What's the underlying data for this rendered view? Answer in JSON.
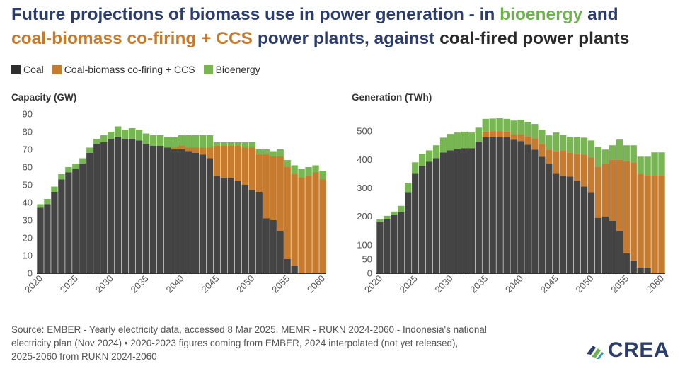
{
  "title": {
    "part1": "Future projections of biomass use in power generation - in ",
    "bio": "bioenergy",
    "part2": " and",
    "cofire": "coal-biomass co-firing + CCS",
    "part3": " power plants, against ",
    "coal": "coal-fired power plants"
  },
  "legend": {
    "coal": "Coal",
    "cofire": "Coal-biomass co-firing + CCS",
    "bio": "Bioenergy"
  },
  "colors": {
    "coal": "#444444",
    "cofire": "#c67b2e",
    "bio": "#77b653",
    "axis": "#555555",
    "tick": "#555555",
    "title": "#2c3d6b"
  },
  "chart_data": [
    {
      "type": "bar",
      "stacked": true,
      "title": "Capacity (GW)",
      "ylim": [
        0,
        90
      ],
      "yticks": [
        0,
        10,
        20,
        30,
        40,
        50,
        60,
        70,
        80,
        90
      ],
      "xticks": [
        2020,
        2025,
        2030,
        2035,
        2040,
        2045,
        2050,
        2055,
        2060
      ],
      "categories": [
        2020,
        2021,
        2022,
        2023,
        2024,
        2025,
        2026,
        2027,
        2028,
        2029,
        2030,
        2031,
        2032,
        2033,
        2034,
        2035,
        2036,
        2037,
        2038,
        2039,
        2040,
        2041,
        2042,
        2043,
        2044,
        2045,
        2046,
        2047,
        2048,
        2049,
        2050,
        2051,
        2052,
        2053,
        2054,
        2055,
        2056,
        2057,
        2058,
        2059,
        2060
      ],
      "series": [
        {
          "name": "Coal",
          "values": [
            37,
            39,
            46,
            53,
            57,
            59,
            62,
            68,
            73,
            74,
            76,
            77,
            76,
            76,
            75,
            73,
            72,
            72,
            71,
            70,
            70,
            69,
            68,
            67,
            65,
            55,
            54,
            54,
            52,
            50,
            47,
            46,
            31,
            30,
            24,
            8,
            4,
            0,
            0,
            0,
            0
          ]
        },
        {
          "name": "Coal-biomass co-firing + CCS",
          "values": [
            0,
            0,
            0,
            0,
            0,
            0,
            0,
            0,
            0,
            0,
            0,
            0,
            0,
            0,
            0,
            0,
            0,
            0,
            0,
            1,
            2,
            2,
            3,
            4,
            6,
            17,
            18,
            18,
            20,
            21,
            24,
            21,
            36,
            36,
            42,
            52,
            52,
            54,
            55,
            57,
            53
          ]
        },
        {
          "name": "Bioenergy",
          "values": [
            2,
            3,
            3,
            3,
            3,
            3,
            3,
            3,
            3,
            4,
            4,
            6,
            5,
            6,
            6,
            6,
            6,
            6,
            6,
            6,
            6,
            7,
            7,
            7,
            7,
            2,
            2,
            2,
            2,
            3,
            3,
            3,
            3,
            3,
            4,
            4,
            5,
            5,
            5,
            4,
            5
          ]
        }
      ]
    },
    {
      "type": "bar",
      "stacked": true,
      "title": "Generation (TWh)",
      "ylim": [
        0,
        560
      ],
      "yticks": [
        0,
        50,
        100,
        200,
        300,
        400,
        500
      ],
      "xticks": [
        2020,
        2025,
        2030,
        2035,
        2040,
        2045,
        2050,
        2055,
        2060
      ],
      "categories": [
        2020,
        2021,
        2022,
        2023,
        2024,
        2025,
        2026,
        2027,
        2028,
        2029,
        2030,
        2031,
        2032,
        2033,
        2034,
        2035,
        2036,
        2037,
        2038,
        2039,
        2040,
        2041,
        2042,
        2043,
        2044,
        2045,
        2046,
        2047,
        2048,
        2049,
        2050,
        2051,
        2052,
        2053,
        2054,
        2055,
        2056,
        2057,
        2058,
        2059,
        2060
      ],
      "series": [
        {
          "name": "Coal",
          "values": [
            180,
            190,
            205,
            215,
            285,
            350,
            378,
            392,
            405,
            425,
            432,
            437,
            440,
            440,
            462,
            478,
            480,
            480,
            478,
            470,
            465,
            452,
            435,
            410,
            385,
            350,
            342,
            340,
            325,
            305,
            285,
            195,
            200,
            185,
            150,
            70,
            45,
            20,
            20,
            0,
            0
          ]
        },
        {
          "name": "Coal-biomass co-firing + CCS",
          "values": [
            0,
            0,
            0,
            0,
            0,
            0,
            0,
            0,
            0,
            0,
            0,
            0,
            0,
            0,
            0,
            20,
            20,
            20,
            20,
            20,
            25,
            30,
            40,
            45,
            50,
            80,
            90,
            85,
            95,
            112,
            122,
            180,
            185,
            215,
            250,
            325,
            345,
            330,
            325,
            345,
            345
          ]
        },
        {
          "name": "Bioenergy",
          "values": [
            10,
            12,
            12,
            22,
            33,
            40,
            42,
            40,
            45,
            52,
            58,
            58,
            58,
            55,
            50,
            45,
            44,
            45,
            45,
            47,
            50,
            50,
            50,
            50,
            50,
            65,
            55,
            55,
            60,
            60,
            60,
            70,
            50,
            50,
            70,
            55,
            60,
            60,
            65,
            80,
            80
          ]
        }
      ]
    }
  ],
  "footer": {
    "line1": "Source: EMBER - Yearly electricity data, accessed 8 Mar 2025, MEMR - RUKN 2024-2060 - Indonesia's national",
    "line2": "electricity plan (Nov 2024) • 2020-2023 figures coming from EMBER, 2024 interpolated (not yet released),",
    "line3": "2025-2060 from RUKN 2024-2060"
  },
  "logo": {
    "text": "CREA"
  }
}
